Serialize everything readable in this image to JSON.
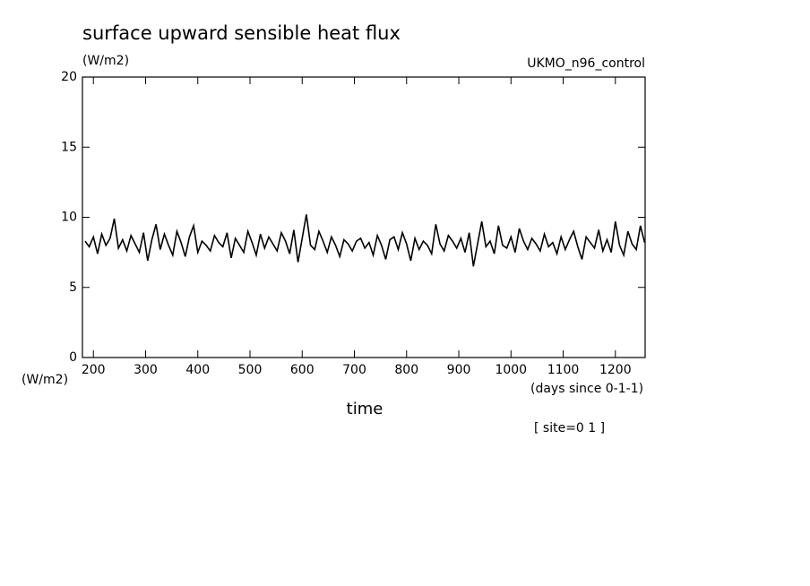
{
  "chart_data": {
    "type": "line",
    "title": "surface upward sensible heat flux",
    "y_units": "(W/m2)",
    "y_units_corner": "(W/m2)",
    "dataset": "UKMO_n96_control",
    "xlabel": "time",
    "x_units": "(days since 0-1-1)",
    "annotation": "[ site=0 1 ]",
    "xlim": [
      179,
      1257
    ],
    "ylim": [
      0,
      20
    ],
    "xticks": [
      200,
      300,
      400,
      500,
      600,
      700,
      800,
      900,
      1000,
      1100,
      1200
    ],
    "yticks": [
      0,
      5,
      10,
      15,
      20
    ],
    "x": [
      184,
      192,
      200,
      208,
      216,
      224,
      232,
      240,
      248,
      256,
      264,
      272,
      280,
      288,
      296,
      304,
      312,
      320,
      328,
      336,
      344,
      352,
      360,
      368,
      376,
      384,
      392,
      400,
      408,
      416,
      424,
      432,
      440,
      448,
      456,
      464,
      472,
      480,
      488,
      496,
      504,
      512,
      520,
      528,
      536,
      544,
      552,
      560,
      568,
      576,
      584,
      592,
      600,
      608,
      616,
      624,
      632,
      640,
      648,
      656,
      664,
      672,
      680,
      688,
      696,
      704,
      712,
      720,
      728,
      736,
      744,
      752,
      760,
      768,
      776,
      784,
      792,
      800,
      808,
      816,
      824,
      832,
      840,
      848,
      856,
      864,
      872,
      880,
      888,
      896,
      904,
      912,
      920,
      928,
      936,
      944,
      952,
      960,
      968,
      976,
      984,
      992,
      1000,
      1008,
      1016,
      1024,
      1032,
      1040,
      1048,
      1056,
      1064,
      1072,
      1080,
      1088,
      1096,
      1104,
      1112,
      1120,
      1128,
      1136,
      1144,
      1152,
      1160,
      1168,
      1176,
      1184,
      1192,
      1200,
      1208,
      1216,
      1224,
      1232,
      1240,
      1248,
      1256
    ],
    "series": [
      {
        "color": "#000000",
        "values": [
          8.3,
          7.9,
          8.6,
          7.4,
          8.8,
          8.0,
          8.5,
          9.9,
          7.8,
          8.4,
          7.6,
          8.7,
          8.1,
          7.5,
          8.9,
          6.9,
          8.4,
          9.5,
          7.7,
          8.8,
          8.0,
          7.3,
          9.0,
          8.2,
          7.2,
          8.6,
          9.4,
          7.5,
          8.3,
          8.0,
          7.6,
          8.7,
          8.2,
          7.9,
          8.9,
          7.1,
          8.5,
          8.0,
          7.5,
          9.0,
          8.2,
          7.3,
          8.8,
          7.8,
          8.6,
          8.1,
          7.6,
          8.9,
          8.3,
          7.4,
          9.1,
          6.8,
          8.5,
          10.2,
          8.0,
          7.7,
          9.0,
          8.3,
          7.5,
          8.6,
          8.0,
          7.2,
          8.4,
          8.1,
          7.6,
          8.3,
          8.5,
          7.8,
          8.2,
          7.3,
          8.7,
          8.0,
          7.0,
          8.4,
          8.6,
          7.7,
          8.9,
          8.1,
          6.9,
          8.5,
          7.7,
          8.3,
          8.0,
          7.4,
          9.5,
          8.1,
          7.6,
          8.7,
          8.3,
          7.8,
          8.5,
          7.5,
          8.9,
          6.5,
          8.1,
          9.7,
          7.9,
          8.3,
          7.4,
          9.4,
          8.0,
          7.8,
          8.6,
          7.5,
          9.2,
          8.3,
          7.7,
          8.5,
          8.1,
          7.6,
          8.8,
          7.9,
          8.2,
          7.4,
          8.6,
          7.7,
          8.4,
          9.0,
          7.9,
          7.0,
          8.6,
          8.2,
          7.8,
          9.1,
          7.6,
          8.4,
          7.5,
          9.7,
          8.0,
          7.3,
          9.0,
          8.1,
          7.7,
          9.4,
          8.2
        ]
      }
    ]
  }
}
